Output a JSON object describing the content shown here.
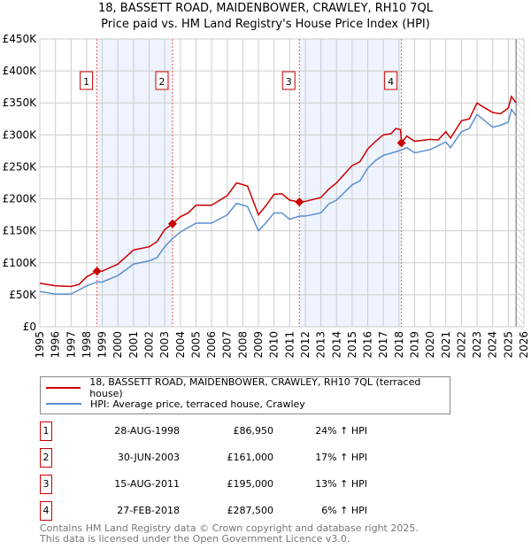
{
  "title": "18, BASSETT ROAD, MAIDENBOWER, CRAWLEY, RH10 7QL",
  "subtitle": "Price paid vs. HM Land Registry's House Price Index (HPI)",
  "chart_data": {
    "type": "line",
    "ylim": [
      0,
      450000
    ],
    "xlim": [
      1995,
      2026
    ],
    "yticks": [
      "£0",
      "£50K",
      "£100K",
      "£150K",
      "£200K",
      "£250K",
      "£300K",
      "£350K",
      "£400K",
      "£450K"
    ],
    "ytick_values": [
      0,
      50000,
      100000,
      150000,
      200000,
      250000,
      300000,
      350000,
      400000,
      450000
    ],
    "xticks": [
      "1995",
      "1996",
      "1997",
      "1998",
      "1999",
      "2000",
      "2001",
      "2002",
      "2003",
      "2004",
      "2005",
      "2006",
      "2007",
      "2008",
      "2009",
      "2010",
      "2011",
      "2012",
      "2013",
      "2014",
      "2015",
      "2016",
      "2017",
      "2018",
      "2019",
      "2020",
      "2021",
      "2022",
      "2023",
      "2024",
      "2025",
      "2026"
    ],
    "grid": true,
    "colors": {
      "property": "#cc0000",
      "hpi": "#5b8fd0",
      "band": "#eef3fd"
    },
    "shaded_bands": [
      [
        1998.66,
        2003.5
      ],
      [
        2011.62,
        2018.16
      ]
    ],
    "forecast_from": 2025.5,
    "series": [
      {
        "name": "18, BASSETT ROAD, MAIDENBOWER, CRAWLEY, RH10 7QL (terraced house)",
        "color": "#cc0000",
        "x": [
          1995,
          1996,
          1997,
          1997.5,
          1998,
          1998.66,
          1999,
          2000,
          2001,
          2002,
          2002.5,
          2003,
          2003.5,
          2004,
          2004.5,
          2005,
          2006,
          2007,
          2007.6,
          2008.3,
          2009,
          2009.5,
          2010,
          2010.5,
          2011,
          2011.62,
          2012,
          2013,
          2013.5,
          2014,
          2015,
          2015.5,
          2016,
          2016.5,
          2017,
          2017.5,
          2017.8,
          2018.1,
          2018.16,
          2018.5,
          2019,
          2020,
          2020.5,
          2021,
          2021.3,
          2022,
          2022.5,
          2023,
          2023.3,
          2024,
          2024.5,
          2025,
          2025.2,
          2025.5
        ],
        "y": [
          68000,
          64000,
          63000,
          66000,
          78000,
          86950,
          87000,
          98000,
          120000,
          125000,
          133000,
          152000,
          161000,
          172000,
          178000,
          190000,
          190000,
          205000,
          225000,
          220000,
          175000,
          190000,
          207000,
          208000,
          198000,
          195000,
          196000,
          202000,
          215000,
          225000,
          252000,
          258000,
          278000,
          290000,
          300000,
          302000,
          310000,
          308000,
          287500,
          298000,
          290000,
          293000,
          292000,
          305000,
          295000,
          322000,
          325000,
          350000,
          345000,
          335000,
          333000,
          342000,
          360000,
          350000
        ]
      },
      {
        "name": "HPI: Average price, terraced house, Crawley",
        "color": "#5b8fd0",
        "x": [
          1995,
          1996,
          1997,
          1998,
          1998.66,
          1999,
          2000,
          2001,
          2002,
          2002.5,
          2003,
          2003.5,
          2004,
          2005,
          2006,
          2007,
          2007.6,
          2008.3,
          2009,
          2009.5,
          2010,
          2010.5,
          2011,
          2011.62,
          2012,
          2013,
          2013.5,
          2014,
          2015,
          2015.5,
          2016,
          2016.5,
          2017,
          2018,
          2018.5,
          2019,
          2020,
          2021,
          2021.3,
          2022,
          2022.5,
          2023,
          2024,
          2024.5,
          2025,
          2025.2,
          2025.5
        ],
        "y": [
          55000,
          51000,
          51000,
          64000,
          70000,
          70000,
          80000,
          98000,
          103000,
          108000,
          125000,
          138000,
          148000,
          162000,
          162000,
          175000,
          193000,
          188000,
          150000,
          163000,
          178000,
          178000,
          168000,
          173000,
          173000,
          178000,
          192000,
          198000,
          222000,
          228000,
          248000,
          260000,
          268000,
          275000,
          280000,
          272000,
          277000,
          289000,
          280000,
          305000,
          310000,
          332000,
          312000,
          315000,
          320000,
          340000,
          330000
        ]
      }
    ],
    "sales": [
      {
        "label": "1",
        "x": 1998.66,
        "price": 86950
      },
      {
        "label": "2",
        "x": 2003.5,
        "price": 161000
      },
      {
        "label": "3",
        "x": 2011.62,
        "price": 195000
      },
      {
        "label": "4",
        "x": 2018.16,
        "price": 287500
      }
    ]
  },
  "legend": {
    "property": "18, BASSETT ROAD, MAIDENBOWER, CRAWLEY, RH10 7QL (terraced house)",
    "hpi": "HPI: Average price, terraced house, Crawley"
  },
  "transactions": [
    {
      "num": "1",
      "date": "28-AUG-1998",
      "price": "£86,950",
      "hpi": "24% ↑ HPI"
    },
    {
      "num": "2",
      "date": "30-JUN-2003",
      "price": "£161,000",
      "hpi": "17% ↑ HPI"
    },
    {
      "num": "3",
      "date": "15-AUG-2011",
      "price": "£195,000",
      "hpi": "13% ↑ HPI"
    },
    {
      "num": "4",
      "date": "27-FEB-2018",
      "price": "£287,500",
      "hpi": "6% ↑ HPI"
    }
  ],
  "footer": [
    "Contains HM Land Registry data © Crown copyright and database right 2025.",
    "This data is licensed under the Open Government Licence v3.0."
  ]
}
